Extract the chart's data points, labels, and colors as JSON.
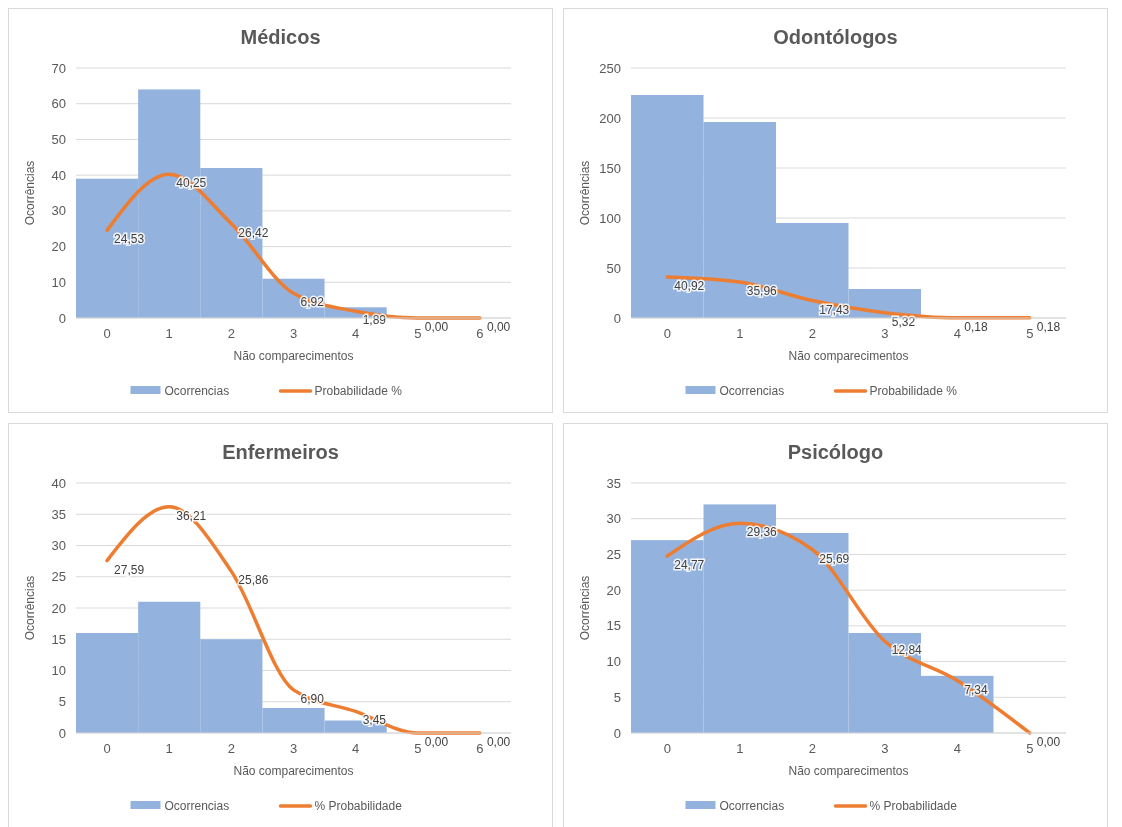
{
  "chart_data": [
    {
      "type": "bar",
      "title": "Médicos",
      "xlabel": "Não comparecimentos",
      "ylabel": "Ocorrências",
      "categories": [
        "0",
        "1",
        "2",
        "3",
        "4",
        "5",
        "6"
      ],
      "ylim": [
        0,
        70
      ],
      "yticks": [
        0,
        10,
        20,
        30,
        40,
        50,
        60,
        70
      ],
      "grid": "y",
      "legend": "bottom",
      "series": [
        {
          "name": "Ocorrencias",
          "color": "#93b3de",
          "values": [
            39,
            64,
            42,
            11,
            3,
            0,
            0
          ]
        },
        {
          "name": "Probabilidade %",
          "type": "line",
          "color": "#ed7d31",
          "values": [
            24.53,
            40.25,
            26.42,
            6.92,
            1.89,
            0,
            0
          ],
          "value_labels": [
            "24,53",
            "40,25",
            "26,42",
            "6,92",
            "1,89",
            "0,00",
            "0,00"
          ]
        }
      ]
    },
    {
      "type": "bar",
      "title": "Odontólogos",
      "xlabel": "Não comparecimentos",
      "ylabel": "Ocorrências",
      "categories": [
        "0",
        "1",
        "2",
        "3",
        "4",
        "5"
      ],
      "ylim": [
        0,
        250
      ],
      "yticks": [
        0,
        50,
        100,
        150,
        200,
        250
      ],
      "grid": "y",
      "legend": "bottom",
      "series": [
        {
          "name": "Ocorrencias",
          "color": "#93b3de",
          "values": [
            223,
            196,
            95,
            29,
            0,
            null
          ]
        },
        {
          "name": "Probabilidade %",
          "type": "line",
          "color": "#ed7d31",
          "values": [
            40.92,
            35.96,
            17.43,
            5.32,
            0.18,
            0.18
          ],
          "value_labels": [
            "40,92",
            "35,96",
            "17,43",
            "5,32",
            "0,18",
            "0,18"
          ]
        }
      ]
    },
    {
      "type": "bar",
      "title": "Enfermeiros",
      "xlabel": "Não comparecimentos",
      "ylabel": "Ocorrências",
      "categories": [
        "0",
        "1",
        "2",
        "3",
        "4",
        "5",
        "6"
      ],
      "ylim": [
        0,
        40
      ],
      "yticks": [
        0,
        5,
        10,
        15,
        20,
        25,
        30,
        35,
        40
      ],
      "grid": "y",
      "legend": "bottom",
      "series": [
        {
          "name": "Ocorrencias",
          "color": "#93b3de",
          "values": [
            16,
            21,
            15,
            4,
            2,
            0,
            0
          ]
        },
        {
          "name": "% Probabilidade",
          "type": "line",
          "color": "#ed7d31",
          "values": [
            27.59,
            36.21,
            25.86,
            6.9,
            3.45,
            0,
            0
          ],
          "value_labels": [
            "27,59",
            "36,21",
            "25,86",
            "6,90",
            "3,45",
            "0,00",
            "0,00"
          ]
        }
      ]
    },
    {
      "type": "bar",
      "title": "Psicólogo",
      "xlabel": "Não comparecimentos",
      "ylabel": "Ocorrências",
      "categories": [
        "0",
        "1",
        "2",
        "3",
        "4",
        "5"
      ],
      "ylim": [
        0,
        35
      ],
      "yticks": [
        0,
        5,
        10,
        15,
        20,
        25,
        30,
        35
      ],
      "grid": "y",
      "legend": "bottom",
      "series": [
        {
          "name": "Ocorrencias",
          "color": "#93b3de",
          "values": [
            27,
            32,
            28,
            14,
            8,
            0
          ]
        },
        {
          "name": "% Probabilidade",
          "type": "line",
          "color": "#ed7d31",
          "values": [
            24.77,
            29.36,
            25.69,
            12.84,
            7.34,
            0
          ],
          "value_labels": [
            "24,77",
            "29,36",
            "25,69",
            "12,84",
            "7,34",
            "0,00"
          ]
        }
      ]
    }
  ]
}
